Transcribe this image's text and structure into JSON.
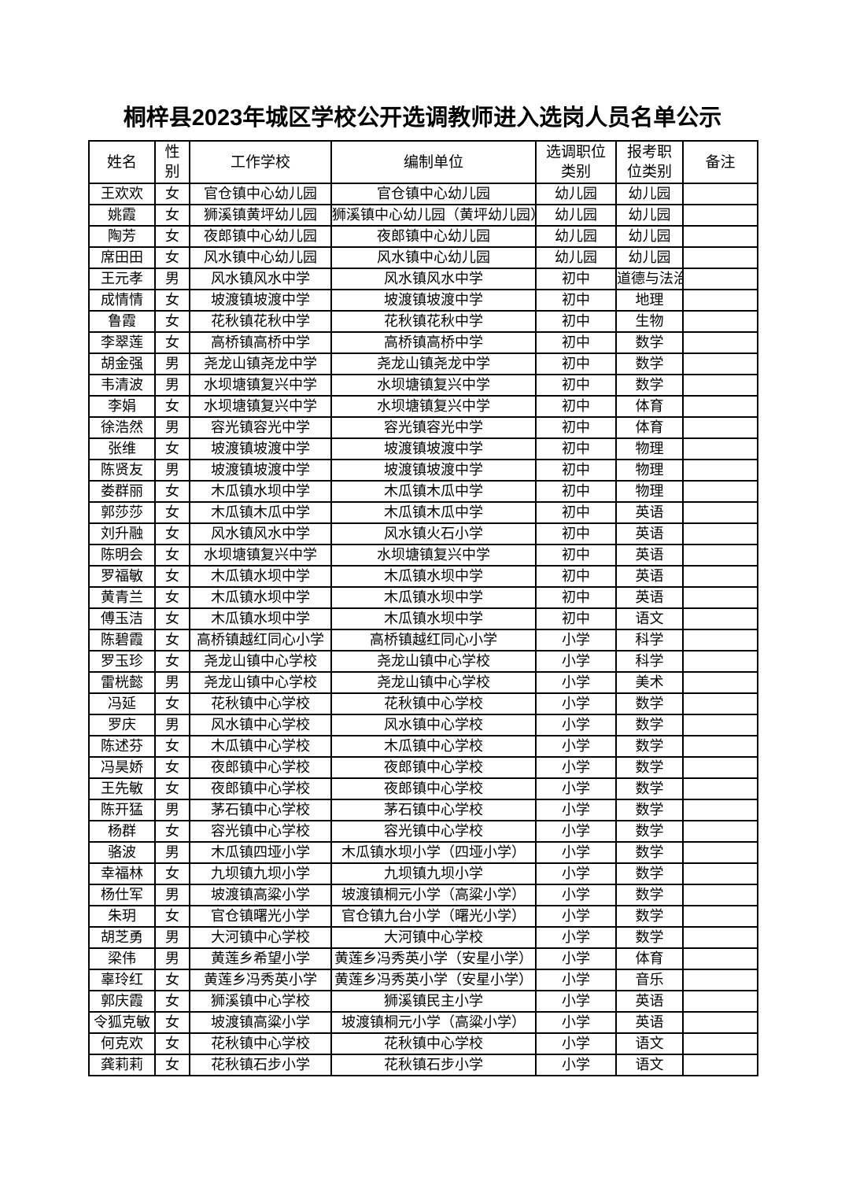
{
  "title": "桐梓县2023年城区学校公开选调教师进入选岗人员名单公示",
  "colors": {
    "background": "#ffffff",
    "text": "#000000",
    "border": "#000000"
  },
  "table": {
    "headers": [
      "姓名",
      "性\n别",
      "工作学校",
      "编制单位",
      "选调职位\n类别",
      "报考职\n位类别",
      "备注"
    ],
    "column_names": [
      "name-cell",
      "gender-cell",
      "work-school-cell",
      "establishment-unit-cell",
      "selection-position-category-cell",
      "applied-position-category-cell",
      "remark-cell"
    ],
    "rows": [
      [
        "王欢欢",
        "女",
        "官仓镇中心幼儿园",
        "官仓镇中心幼儿园",
        "幼儿园",
        "幼儿园",
        ""
      ],
      [
        "姚霞",
        "女",
        "狮溪镇黄坪幼儿园",
        "狮溪镇中心幼儿园（黄坪幼儿园）",
        "幼儿园",
        "幼儿园",
        ""
      ],
      [
        "陶芳",
        "女",
        "夜郎镇中心幼儿园",
        "夜郎镇中心幼儿园",
        "幼儿园",
        "幼儿园",
        ""
      ],
      [
        "席田田",
        "女",
        "风水镇中心幼儿园",
        "风水镇中心幼儿园",
        "幼儿园",
        "幼儿园",
        ""
      ],
      [
        "王元孝",
        "男",
        "风水镇风水中学",
        "风水镇风水中学",
        "初中",
        "道德与法治",
        ""
      ],
      [
        "成情情",
        "女",
        "坡渡镇坡渡中学",
        "坡渡镇坡渡中学",
        "初中",
        "地理",
        ""
      ],
      [
        "鲁霞",
        "女",
        "花秋镇花秋中学",
        "花秋镇花秋中学",
        "初中",
        "生物",
        ""
      ],
      [
        "李翠莲",
        "女",
        "高桥镇高桥中学",
        "高桥镇高桥中学",
        "初中",
        "数学",
        ""
      ],
      [
        "胡金强",
        "男",
        "尧龙山镇尧龙中学",
        "尧龙山镇尧龙中学",
        "初中",
        "数学",
        ""
      ],
      [
        "韦清波",
        "男",
        "水坝塘镇复兴中学",
        "水坝塘镇复兴中学",
        "初中",
        "数学",
        ""
      ],
      [
        "李娟",
        "女",
        "水坝塘镇复兴中学",
        "水坝塘镇复兴中学",
        "初中",
        "体育",
        ""
      ],
      [
        "徐浩然",
        "男",
        "容光镇容光中学",
        "容光镇容光中学",
        "初中",
        "体育",
        ""
      ],
      [
        "张维",
        "女",
        "坡渡镇坡渡中学",
        "坡渡镇坡渡中学",
        "初中",
        "物理",
        ""
      ],
      [
        "陈贤友",
        "男",
        "坡渡镇坡渡中学",
        "坡渡镇坡渡中学",
        "初中",
        "物理",
        ""
      ],
      [
        "娄群丽",
        "女",
        "木瓜镇水坝中学",
        "木瓜镇木瓜中学",
        "初中",
        "物理",
        ""
      ],
      [
        "郭莎莎",
        "女",
        "木瓜镇木瓜中学",
        "木瓜镇木瓜中学",
        "初中",
        "英语",
        ""
      ],
      [
        "刘升融",
        "女",
        "风水镇风水中学",
        "风水镇火石小学",
        "初中",
        "英语",
        ""
      ],
      [
        "陈明会",
        "女",
        "水坝塘镇复兴中学",
        "水坝塘镇复兴中学",
        "初中",
        "英语",
        ""
      ],
      [
        "罗福敏",
        "女",
        "木瓜镇水坝中学",
        "木瓜镇水坝中学",
        "初中",
        "英语",
        ""
      ],
      [
        "黄青兰",
        "女",
        "木瓜镇水坝中学",
        "木瓜镇水坝中学",
        "初中",
        "英语",
        ""
      ],
      [
        "傅玉洁",
        "女",
        "木瓜镇水坝中学",
        "木瓜镇水坝中学",
        "初中",
        "语文",
        ""
      ],
      [
        "陈碧霞",
        "女",
        "高桥镇越红同心小学",
        "高桥镇越红同心小学",
        "小学",
        "科学",
        ""
      ],
      [
        "罗玉珍",
        "女",
        "尧龙山镇中心学校",
        "尧龙山镇中心学校",
        "小学",
        "科学",
        ""
      ],
      [
        "雷桄懿",
        "男",
        "尧龙山镇中心学校",
        "尧龙山镇中心学校",
        "小学",
        "美术",
        ""
      ],
      [
        "冯延",
        "女",
        "花秋镇中心学校",
        "花秋镇中心学校",
        "小学",
        "数学",
        ""
      ],
      [
        "罗庆",
        "男",
        "风水镇中心学校",
        "风水镇中心学校",
        "小学",
        "数学",
        ""
      ],
      [
        "陈述芬",
        "女",
        "木瓜镇中心学校",
        "木瓜镇中心学校",
        "小学",
        "数学",
        ""
      ],
      [
        "冯昊娇",
        "女",
        "夜郎镇中心学校",
        "夜郎镇中心学校",
        "小学",
        "数学",
        ""
      ],
      [
        "王先敏",
        "女",
        "夜郎镇中心学校",
        "夜郎镇中心学校",
        "小学",
        "数学",
        ""
      ],
      [
        "陈开猛",
        "男",
        "茅石镇中心学校",
        "茅石镇中心学校",
        "小学",
        "数学",
        ""
      ],
      [
        "杨群",
        "女",
        "容光镇中心学校",
        "容光镇中心学校",
        "小学",
        "数学",
        ""
      ],
      [
        "骆波",
        "男",
        "木瓜镇四垭小学",
        "木瓜镇水坝小学（四垭小学）",
        "小学",
        "数学",
        ""
      ],
      [
        "幸福林",
        "女",
        "九坝镇九坝小学",
        "九坝镇九坝小学",
        "小学",
        "数学",
        ""
      ],
      [
        "杨仕军",
        "男",
        "坡渡镇高粱小学",
        "坡渡镇桐元小学（高粱小学）",
        "小学",
        "数学",
        ""
      ],
      [
        "朱玥",
        "女",
        "官仓镇曙光小学",
        "官仓镇九台小学（曙光小学）",
        "小学",
        "数学",
        ""
      ],
      [
        "胡芝勇",
        "男",
        "大河镇中心学校",
        "大河镇中心学校",
        "小学",
        "数学",
        ""
      ],
      [
        "梁伟",
        "男",
        "黄莲乡希望小学",
        "黄莲乡冯秀英小学（安星小学）",
        "小学",
        "体育",
        ""
      ],
      [
        "辜玲红",
        "女",
        "黄莲乡冯秀英小学",
        "黄莲乡冯秀英小学（安星小学）",
        "小学",
        "音乐",
        ""
      ],
      [
        "郭庆霞",
        "女",
        "狮溪镇中心学校",
        "狮溪镇民主小学",
        "小学",
        "英语",
        ""
      ],
      [
        "令狐克敏",
        "女",
        "坡渡镇高粱小学",
        "坡渡镇桐元小学（高粱小学）",
        "小学",
        "英语",
        ""
      ],
      [
        "何克欢",
        "女",
        "花秋镇中心学校",
        "花秋镇中心学校",
        "小学",
        "语文",
        ""
      ],
      [
        "龚莉莉",
        "女",
        "花秋镇石步小学",
        "花秋镇石步小学",
        "小学",
        "语文",
        ""
      ]
    ]
  }
}
